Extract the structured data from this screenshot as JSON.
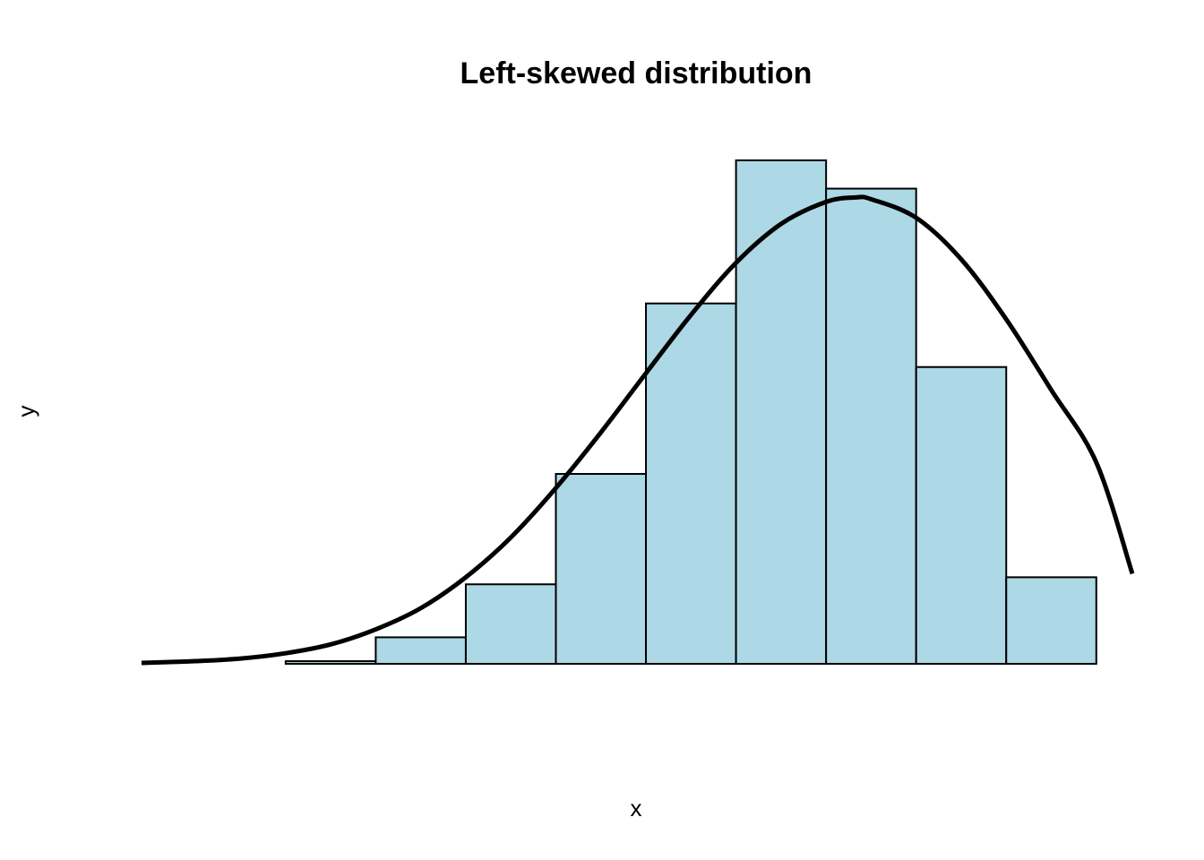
{
  "chart_data": {
    "type": "bar",
    "title": "Left-skewed distribution",
    "xlabel": "x",
    "ylabel": "y",
    "axes_shown": false,
    "grid": false,
    "bar_fill": "#add8e6",
    "bar_stroke": "#000000",
    "curve_color": "#000000",
    "bins": [
      {
        "bin": 1,
        "value": 0.0
      },
      {
        "bin": 2,
        "value": 0.3
      },
      {
        "bin": 3,
        "value": 3.0
      },
      {
        "bin": 4,
        "value": 9.0
      },
      {
        "bin": 5,
        "value": 21.5
      },
      {
        "bin": 6,
        "value": 40.8
      },
      {
        "bin": 7,
        "value": 57.0
      },
      {
        "bin": 8,
        "value": 53.8
      },
      {
        "bin": 9,
        "value": 33.6
      },
      {
        "bin": 10,
        "value": 9.8
      }
    ],
    "curve": {
      "name": "density curve",
      "x": [
        -0.6,
        0.0,
        0.5,
        1.0,
        1.5,
        2.0,
        2.5,
        3.0,
        3.5,
        4.0,
        4.5,
        5.0,
        5.5,
        6.0,
        6.5,
        7.0,
        7.33,
        7.5,
        8.0,
        8.5,
        9.0,
        9.5,
        10.0,
        10.4
      ],
      "y": [
        0.1,
        0.3,
        0.6,
        1.2,
        2.2,
        3.9,
        6.3,
        9.8,
        14.3,
        19.9,
        26.2,
        32.9,
        39.5,
        45.4,
        49.8,
        52.3,
        52.8,
        52.6,
        50.5,
        45.8,
        39.0,
        31.0,
        22.8,
        10.2
      ]
    },
    "xlim": [
      -0.6,
      10.4
    ],
    "ylim": [
      0,
      57.0
    ]
  }
}
